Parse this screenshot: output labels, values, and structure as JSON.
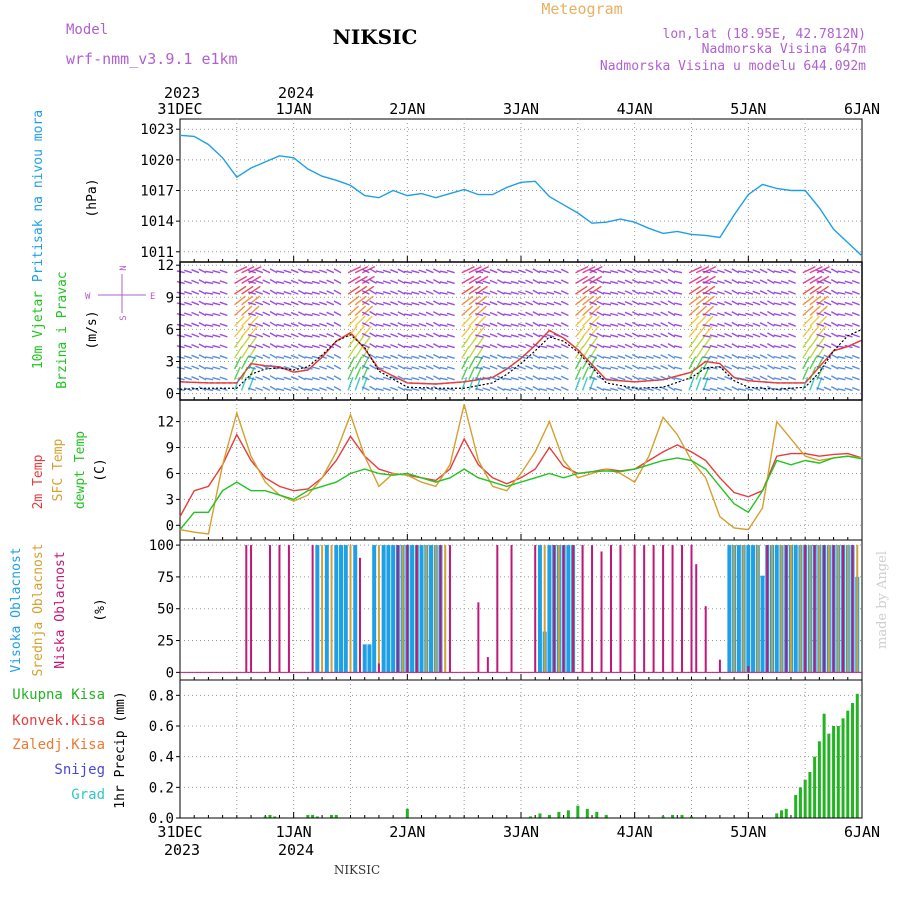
{
  "header": {
    "station": "NIKSIC",
    "model_label": "Model",
    "model_name": "wrf-nmm_v3.9.1 e1km",
    "product": "Meteogram",
    "lonlat": "lon,lat (18.95E, 42.7812N)",
    "altitude": "Nadmorska Visina 647m",
    "model_altitude": "Nadmorska Visina u modelu 644.092m",
    "footer_station": "NIKSIC",
    "watermark": "made by Angel"
  },
  "time_axis": {
    "days": [
      "31DEC",
      "1JAN",
      "2JAN",
      "3JAN",
      "4JAN",
      "5JAN",
      "6JAN"
    ],
    "top_years": [
      "2023",
      "2024"
    ],
    "bottom_years": [
      "2023",
      "2024"
    ]
  },
  "panels": {
    "pressure": {
      "label": "Pritisak na nivou mora",
      "unit": "(hPa)"
    },
    "wind": {
      "label_1": "10m Vjetar",
      "label_2": "Brzina i Pravac",
      "unit": "(m/s)",
      "compass": {
        "n": "N",
        "s": "S",
        "w": "W",
        "e": "E"
      }
    },
    "temp": {
      "label_1": "2m Temp",
      "label_2": "SFC Temp",
      "label_3": "dewpt Temp",
      "unit": "(C)"
    },
    "cloud": {
      "label_1": "Visoka Oblacnost",
      "label_2": "Srednja Oblacnost",
      "label_3": "Niska Oblacnost",
      "unit": "(%)"
    },
    "precip": {
      "unit": "1hr Precip (mm)",
      "legend": [
        "Ukupna Kisa",
        "Konvek.Kisa",
        "Zaledj.Kisa",
        "Snijeg",
        "Grad"
      ]
    }
  },
  "colors": {
    "pressure": "#1ea0e6",
    "t2m": "#e83c3c",
    "tsfc": "#d4a030",
    "dewpt": "#22c422",
    "wind_speed": "#e83c3c",
    "wind_gust": "#000000",
    "cloud_high": "#1ea0e6",
    "cloud_mid": "#d4a030",
    "cloud_low": "#c01878",
    "precip_total": "#22b422",
    "label_model": "#b060d0",
    "label_product": "#e8b060",
    "legend_total": "#22b422",
    "legend_conv": "#e83c3c",
    "legend_frz": "#f07830",
    "legend_snow": "#4848d8",
    "legend_grad": "#30c8c8",
    "label_pressure": "#1ea0e6"
  },
  "chart_data": [
    {
      "type": "line",
      "title": "",
      "ylabel": "Pritisak na nivou mora (hPa)",
      "ylim": [
        1010,
        1024
      ],
      "yticks": [
        1011,
        1014,
        1017,
        1020,
        1023
      ],
      "x_unit": "hours since 31DEC 00UTC",
      "series": [
        {
          "name": "",
          "color": "#1ea0e6",
          "x": [
            0,
            3,
            6,
            9,
            12,
            15,
            18,
            21,
            24,
            27,
            30,
            33,
            36,
            39,
            42,
            45,
            48,
            51,
            54,
            57,
            60,
            63,
            66,
            69,
            72,
            75,
            78,
            81,
            84,
            87,
            90,
            93,
            96,
            99,
            102,
            105,
            108,
            111,
            114,
            117,
            120,
            123,
            126,
            129,
            132,
            135,
            138,
            141,
            144
          ],
          "y": [
            1022.4,
            1022.3,
            1021.5,
            1020.2,
            1018.3,
            1019.2,
            1019.8,
            1020.4,
            1020.2,
            1019.1,
            1018.4,
            1018.0,
            1017.5,
            1016.5,
            1016.3,
            1017.0,
            1016.5,
            1016.7,
            1016.3,
            1016.7,
            1017.1,
            1016.6,
            1016.6,
            1017.3,
            1017.8,
            1017.9,
            1016.4,
            1015.6,
            1014.8,
            1013.8,
            1013.9,
            1014.2,
            1013.9,
            1013.3,
            1012.8,
            1013.0,
            1012.7,
            1012.6,
            1012.4,
            1014.6,
            1016.6,
            1017.6,
            1017.2,
            1017.0,
            1017.0,
            1015.3,
            1013.2,
            1011.9,
            1010.6
          ]
        }
      ]
    },
    {
      "type": "line",
      "title": "",
      "ylabel": "10m Vjetar Brzina i Pravac (m/s)",
      "ylim": [
        -0.6,
        12.3
      ],
      "yticks": [
        0,
        3,
        6,
        9,
        12
      ],
      "x_unit": "hours since 31DEC 00UTC",
      "series": [
        {
          "name": "",
          "color": "#e83c3c",
          "x": [
            0,
            6,
            12,
            15,
            18,
            21,
            24,
            27,
            30,
            33,
            36,
            39,
            42,
            48,
            54,
            60,
            66,
            69,
            72,
            75,
            78,
            81,
            84,
            90,
            96,
            102,
            108,
            111,
            114,
            117,
            120,
            126,
            132,
            135,
            138,
            141,
            144
          ],
          "y": [
            1.1,
            1.0,
            1.0,
            2.8,
            2.6,
            2.5,
            2.0,
            2.2,
            3.4,
            4.9,
            5.7,
            4.2,
            2.3,
            1.0,
            0.9,
            1.1,
            1.5,
            2.3,
            3.3,
            4.5,
            5.9,
            5.2,
            4.1,
            1.3,
            1.1,
            1.3,
            2.0,
            3.0,
            2.8,
            1.5,
            1.2,
            1.0,
            1.0,
            2.5,
            4.0,
            4.4,
            5.0
          ]
        },
        {
          "name": "",
          "color": "#000000",
          "x": [
            0,
            6,
            12,
            15,
            18,
            21,
            24,
            27,
            30,
            33,
            36,
            39,
            42,
            48,
            54,
            60,
            66,
            69,
            72,
            75,
            78,
            81,
            84,
            90,
            96,
            102,
            108,
            111,
            114,
            117,
            120,
            126,
            132,
            135,
            138,
            141,
            144
          ],
          "y": [
            0.4,
            0.5,
            0.5,
            1.8,
            2.3,
            2.4,
            2.2,
            2.5,
            3.6,
            4.9,
            5.5,
            4.3,
            2.1,
            0.6,
            0.5,
            0.5,
            1.0,
            1.8,
            2.8,
            4.0,
            5.3,
            4.9,
            3.9,
            1.0,
            0.5,
            0.6,
            1.5,
            2.4,
            2.5,
            1.2,
            0.6,
            0.4,
            0.6,
            2.0,
            4.0,
            5.4,
            6.0
          ]
        }
      ]
    },
    {
      "type": "line",
      "title": "",
      "ylabel": "2m Temp / SFC Temp / dewpt Temp (C)",
      "ylim": [
        -1.7,
        14.5
      ],
      "yticks": [
        0,
        3,
        6,
        9,
        12
      ],
      "x_unit": "hours since 31DEC 00UTC",
      "series": [
        {
          "name": "2m Temp",
          "color": "#e83c3c",
          "x": [
            0,
            3,
            6,
            9,
            12,
            15,
            18,
            21,
            24,
            27,
            30,
            33,
            36,
            39,
            42,
            45,
            48,
            51,
            54,
            57,
            60,
            63,
            66,
            69,
            72,
            75,
            78,
            81,
            84,
            87,
            90,
            93,
            96,
            99,
            102,
            105,
            108,
            111,
            114,
            117,
            120,
            123,
            126,
            129,
            132,
            135,
            138,
            141,
            144
          ],
          "y": [
            1.0,
            4.0,
            4.5,
            7.0,
            10.5,
            7.5,
            5.5,
            4.5,
            4.0,
            4.2,
            5.5,
            7.5,
            10.3,
            8.0,
            6.5,
            6.0,
            5.8,
            5.5,
            5.2,
            6.5,
            10.0,
            7.0,
            5.5,
            4.8,
            5.5,
            6.5,
            9.0,
            6.8,
            6.0,
            6.2,
            6.5,
            6.3,
            6.5,
            7.5,
            8.5,
            9.3,
            8.5,
            7.5,
            5.5,
            3.8,
            3.3,
            4.0,
            8.0,
            8.3,
            8.3,
            8.0,
            8.2,
            8.3,
            7.8
          ]
        },
        {
          "name": "SFC Temp",
          "color": "#d4a030",
          "x": [
            0,
            3,
            6,
            9,
            12,
            15,
            18,
            21,
            24,
            27,
            30,
            33,
            36,
            39,
            42,
            45,
            48,
            51,
            54,
            57,
            60,
            63,
            66,
            69,
            72,
            75,
            78,
            81,
            84,
            87,
            90,
            93,
            96,
            99,
            102,
            105,
            108,
            111,
            114,
            117,
            120,
            123,
            126,
            129,
            132,
            135,
            138,
            141,
            144
          ],
          "y": [
            -0.5,
            -0.8,
            -1.0,
            7.0,
            13.0,
            8.0,
            5.0,
            3.5,
            2.8,
            3.5,
            5.5,
            8.5,
            12.8,
            8.0,
            4.5,
            6.0,
            5.8,
            5.0,
            4.5,
            7.0,
            14.0,
            7.5,
            4.5,
            4.0,
            6.0,
            8.5,
            12.0,
            7.5,
            5.5,
            6.0,
            6.5,
            6.0,
            5.0,
            8.0,
            12.5,
            10.5,
            7.5,
            5.5,
            1.0,
            -0.3,
            -0.5,
            2.0,
            12.0,
            10.0,
            8.0,
            7.5,
            7.8,
            8.0,
            7.8
          ]
        },
        {
          "name": "dewpt Temp",
          "color": "#22c422",
          "x": [
            0,
            3,
            6,
            9,
            12,
            15,
            18,
            21,
            24,
            27,
            30,
            33,
            36,
            39,
            42,
            45,
            48,
            51,
            54,
            57,
            60,
            63,
            66,
            69,
            72,
            75,
            78,
            81,
            84,
            87,
            90,
            93,
            96,
            99,
            102,
            105,
            108,
            111,
            114,
            117,
            120,
            123,
            126,
            129,
            132,
            135,
            138,
            141,
            144
          ],
          "y": [
            -0.5,
            1.5,
            1.5,
            4.0,
            5.0,
            4.0,
            4.0,
            3.5,
            3.0,
            4.0,
            4.5,
            5.0,
            6.0,
            6.5,
            6.0,
            5.8,
            6.0,
            5.5,
            5.0,
            5.5,
            6.5,
            5.5,
            5.0,
            4.5,
            5.0,
            5.5,
            6.0,
            5.5,
            6.0,
            6.2,
            6.3,
            6.2,
            6.5,
            7.0,
            7.5,
            7.8,
            7.5,
            6.5,
            4.5,
            2.5,
            1.5,
            4.0,
            7.5,
            7.0,
            7.5,
            7.2,
            7.8,
            8.0,
            7.7
          ]
        }
      ]
    },
    {
      "type": "bar",
      "title": "",
      "ylabel": "Visoka / Srednja / Niska Oblacnost (%)",
      "ylim": [
        -6,
        104
      ],
      "yticks": [
        0,
        25,
        50,
        75,
        100
      ],
      "x_unit": "hours since 31DEC 00UTC",
      "series": [
        {
          "name": "Visoka Oblacnost",
          "color": "#1ea0e6",
          "x": [
            29,
            31,
            33,
            34,
            35,
            37,
            39,
            40,
            41,
            43,
            44,
            45,
            46,
            47,
            48,
            49,
            50,
            51,
            52,
            53,
            54,
            55,
            76,
            77,
            78,
            79,
            80,
            81,
            82,
            83,
            116,
            117,
            118,
            119,
            120,
            121,
            122,
            123,
            124,
            125,
            126,
            127,
            128,
            129,
            130,
            131,
            132,
            133,
            134,
            135,
            136,
            137,
            138,
            139,
            140,
            141,
            142,
            143
          ],
          "y": [
            100,
            100,
            100,
            100,
            100,
            100,
            22,
            22,
            100,
            100,
            100,
            100,
            100,
            100,
            100,
            100,
            100,
            100,
            100,
            100,
            100,
            100,
            100,
            32,
            100,
            100,
            100,
            100,
            100,
            100,
            100,
            100,
            100,
            100,
            100,
            100,
            100,
            76,
            100,
            100,
            100,
            100,
            100,
            100,
            100,
            100,
            100,
            100,
            100,
            100,
            100,
            100,
            100,
            100,
            100,
            100,
            100,
            75
          ]
        },
        {
          "name": "Srednja Oblacnost",
          "color": "#d4a030",
          "x": [
            30,
            32,
            36,
            42,
            47,
            50,
            52,
            54,
            56,
            77,
            79,
            80,
            81,
            83,
            85,
            117,
            119,
            122,
            125,
            127,
            129,
            131,
            133,
            135,
            137,
            139,
            141,
            143
          ],
          "y": [
            100,
            100,
            100,
            100,
            100,
            100,
            100,
            100,
            100,
            100,
            100,
            100,
            100,
            100,
            100,
            100,
            100,
            100,
            100,
            100,
            100,
            100,
            100,
            100,
            100,
            100,
            100,
            100
          ]
        },
        {
          "name": "Niska Oblacnost",
          "color": "#c01878",
          "x": [
            14,
            15,
            19,
            21,
            23,
            28,
            38,
            42,
            46,
            48,
            50,
            55,
            57,
            63,
            65,
            67,
            70,
            75,
            79,
            81,
            83,
            85,
            87,
            89,
            91,
            93,
            96,
            98,
            100,
            102,
            104,
            106,
            108,
            109,
            111,
            114,
            120,
            124,
            128,
            132,
            134,
            136,
            138,
            140,
            142
          ],
          "y": [
            100,
            100,
            100,
            100,
            100,
            100,
            90,
            7,
            100,
            100,
            100,
            100,
            100,
            55,
            12,
            100,
            100,
            100,
            100,
            100,
            100,
            100,
            100,
            95,
            100,
            100,
            100,
            100,
            100,
            100,
            100,
            100,
            100,
            85,
            52,
            10,
            5,
            100,
            100,
            100,
            100,
            100,
            100,
            100,
            100
          ]
        }
      ]
    },
    {
      "type": "bar",
      "title": "",
      "ylabel": "1hr Precip (mm)",
      "ylim": [
        0,
        0.9
      ],
      "yticks": [
        0.0,
        0.2,
        0.4,
        0.6,
        0.8
      ],
      "x_unit": "hours since 31DEC 00UTC",
      "series": [
        {
          "name": "Ukupna Kisa",
          "color": "#22b422",
          "x": [
            18,
            19,
            20,
            27,
            28,
            29,
            32,
            33,
            48,
            74,
            76,
            78,
            80,
            82,
            84,
            86,
            88,
            90,
            102,
            104,
            106,
            108,
            126,
            127,
            128,
            130,
            131,
            132,
            133,
            134,
            135,
            136,
            137,
            138,
            139,
            140,
            141,
            142,
            143
          ],
          "y": [
            0.01,
            0.02,
            0.01,
            0.02,
            0.02,
            0.01,
            0.02,
            0.02,
            0.06,
            0.01,
            0.03,
            0.02,
            0.04,
            0.05,
            0.08,
            0.06,
            0.04,
            0.02,
            0.01,
            0.02,
            0.02,
            0.01,
            0.03,
            0.05,
            0.06,
            0.15,
            0.2,
            0.25,
            0.3,
            0.4,
            0.5,
            0.68,
            0.55,
            0.6,
            0.6,
            0.65,
            0.7,
            0.75,
            0.81
          ]
        }
      ]
    }
  ]
}
